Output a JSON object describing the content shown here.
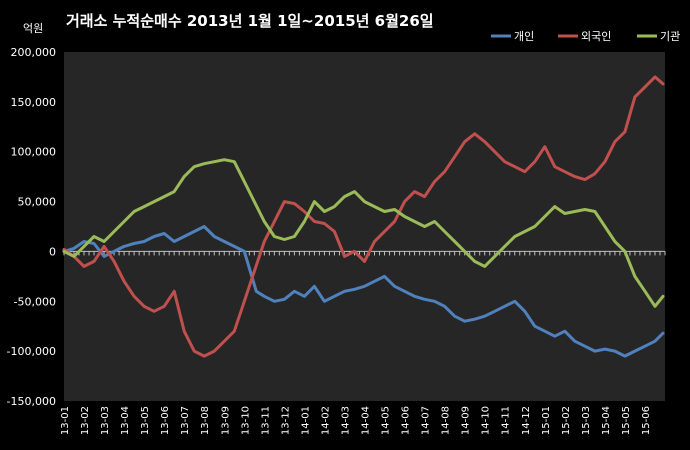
{
  "chart_data": {
    "type": "line",
    "title": "거래소  누적순매수 2013년 1월 1일~2015년 6월26일",
    "unit_label": "억원",
    "ylim": [
      -150000,
      200000
    ],
    "yticks": [
      200000,
      150000,
      100000,
      50000,
      0,
      -50000,
      -100000,
      -150000
    ],
    "ytick_labels": [
      "200,000",
      "150,000",
      "100,000",
      "50,000",
      "0",
      "-50,000",
      "-100,000",
      "-150,000"
    ],
    "xlim": [
      0,
      30
    ],
    "categories": [
      "13-01",
      "13-02",
      "13-03",
      "13-04",
      "13-05",
      "13-06",
      "13-07",
      "13-08",
      "13-09",
      "13-10",
      "13-11",
      "13-12",
      "14-01",
      "14-02",
      "14-03",
      "14-04",
      "14-05",
      "14-06",
      "14-07",
      "14-08",
      "14-09",
      "14-10",
      "14-11",
      "14-12",
      "15-01",
      "15-02",
      "15-03",
      "15-04",
      "15-05",
      "15-06"
    ],
    "legend_position": "top-right",
    "colors": {
      "plot_background": "#262626",
      "page_background": "#000000",
      "axis": "#bfbfbf"
    },
    "series": [
      {
        "name": "개인",
        "color": "#4f81bd",
        "x": [
          0,
          0.5,
          1,
          1.5,
          2,
          2.5,
          3,
          3.5,
          4,
          4.5,
          5,
          5.5,
          6,
          6.5,
          7,
          7.5,
          8,
          8.5,
          9,
          9.3,
          9.6,
          10,
          10.5,
          11,
          11.5,
          12,
          12.5,
          13,
          13.5,
          14,
          14.5,
          15,
          15.5,
          16,
          16.5,
          17,
          17.5,
          18,
          18.5,
          19,
          19.5,
          20,
          20.5,
          21,
          21.5,
          22,
          22.5,
          23,
          23.5,
          24,
          24.5,
          25,
          25.5,
          26,
          26.5,
          27,
          27.5,
          28,
          28.5,
          29,
          29.5,
          29.9
        ],
        "y": [
          0,
          3000,
          10000,
          8000,
          -5000,
          0,
          5000,
          8000,
          10000,
          15000,
          18000,
          10000,
          15000,
          20000,
          25000,
          15000,
          10000,
          5000,
          0,
          -20000,
          -40000,
          -45000,
          -50000,
          -48000,
          -40000,
          -45000,
          -35000,
          -50000,
          -45000,
          -40000,
          -38000,
          -35000,
          -30000,
          -25000,
          -35000,
          -40000,
          -45000,
          -48000,
          -50000,
          -55000,
          -65000,
          -70000,
          -68000,
          -65000,
          -60000,
          -55000,
          -50000,
          -60000,
          -75000,
          -80000,
          -85000,
          -80000,
          -90000,
          -95000,
          -100000,
          -98000,
          -100000,
          -105000,
          -100000,
          -95000,
          -90000,
          -82000
        ]
      },
      {
        "name": "외국인",
        "color": "#c0504d",
        "x": [
          0,
          0.5,
          1,
          1.5,
          2,
          2.5,
          3,
          3.5,
          4,
          4.5,
          5,
          5.5,
          6,
          6.5,
          7,
          7.5,
          8,
          8.5,
          9,
          9.5,
          10,
          10.5,
          11,
          11.5,
          12,
          12.5,
          13,
          13.5,
          14,
          14.5,
          15,
          15.5,
          16,
          16.5,
          17,
          17.5,
          18,
          18.5,
          19,
          19.5,
          20,
          20.5,
          21,
          21.5,
          22,
          22.5,
          23,
          23.5,
          24,
          24.5,
          25,
          25.5,
          26,
          26.5,
          27,
          27.5,
          28,
          28.5,
          29,
          29.5,
          29.9
        ],
        "y": [
          2000,
          -5000,
          -15000,
          -10000,
          5000,
          -10000,
          -30000,
          -45000,
          -55000,
          -60000,
          -55000,
          -40000,
          -80000,
          -100000,
          -105000,
          -100000,
          -90000,
          -80000,
          -50000,
          -20000,
          10000,
          30000,
          50000,
          48000,
          40000,
          30000,
          28000,
          20000,
          -5000,
          0,
          -10000,
          10000,
          20000,
          30000,
          50000,
          60000,
          55000,
          70000,
          80000,
          95000,
          110000,
          118000,
          110000,
          100000,
          90000,
          85000,
          80000,
          90000,
          105000,
          85000,
          80000,
          75000,
          72000,
          78000,
          90000,
          110000,
          120000,
          155000,
          165000,
          175000,
          168000
        ]
      },
      {
        "name": "기관",
        "color": "#9bbb59",
        "x": [
          0,
          0.5,
          1,
          1.5,
          2,
          2.5,
          3,
          3.5,
          4,
          4.5,
          5,
          5.5,
          6,
          6.5,
          7,
          7.5,
          8,
          8.5,
          9,
          9.5,
          10,
          10.5,
          11,
          11.5,
          12,
          12.5,
          13,
          13.5,
          14,
          14.5,
          15,
          15.5,
          16,
          16.5,
          17,
          17.5,
          18,
          18.5,
          19,
          19.5,
          20,
          20.5,
          21,
          21.5,
          22,
          22.5,
          23,
          23.5,
          24,
          24.5,
          25,
          25.5,
          26,
          26.5,
          27,
          27.5,
          28,
          28.5,
          29,
          29.5,
          29.9
        ],
        "y": [
          0,
          -5000,
          5000,
          15000,
          10000,
          20000,
          30000,
          40000,
          45000,
          50000,
          55000,
          60000,
          75000,
          85000,
          88000,
          90000,
          92000,
          90000,
          70000,
          50000,
          30000,
          15000,
          12000,
          15000,
          30000,
          50000,
          40000,
          45000,
          55000,
          60000,
          50000,
          45000,
          40000,
          42000,
          35000,
          30000,
          25000,
          30000,
          20000,
          10000,
          0,
          -10000,
          -15000,
          -5000,
          5000,
          15000,
          20000,
          25000,
          35000,
          45000,
          38000,
          40000,
          42000,
          40000,
          25000,
          10000,
          0,
          -25000,
          -40000,
          -55000,
          -45000
        ]
      }
    ]
  }
}
